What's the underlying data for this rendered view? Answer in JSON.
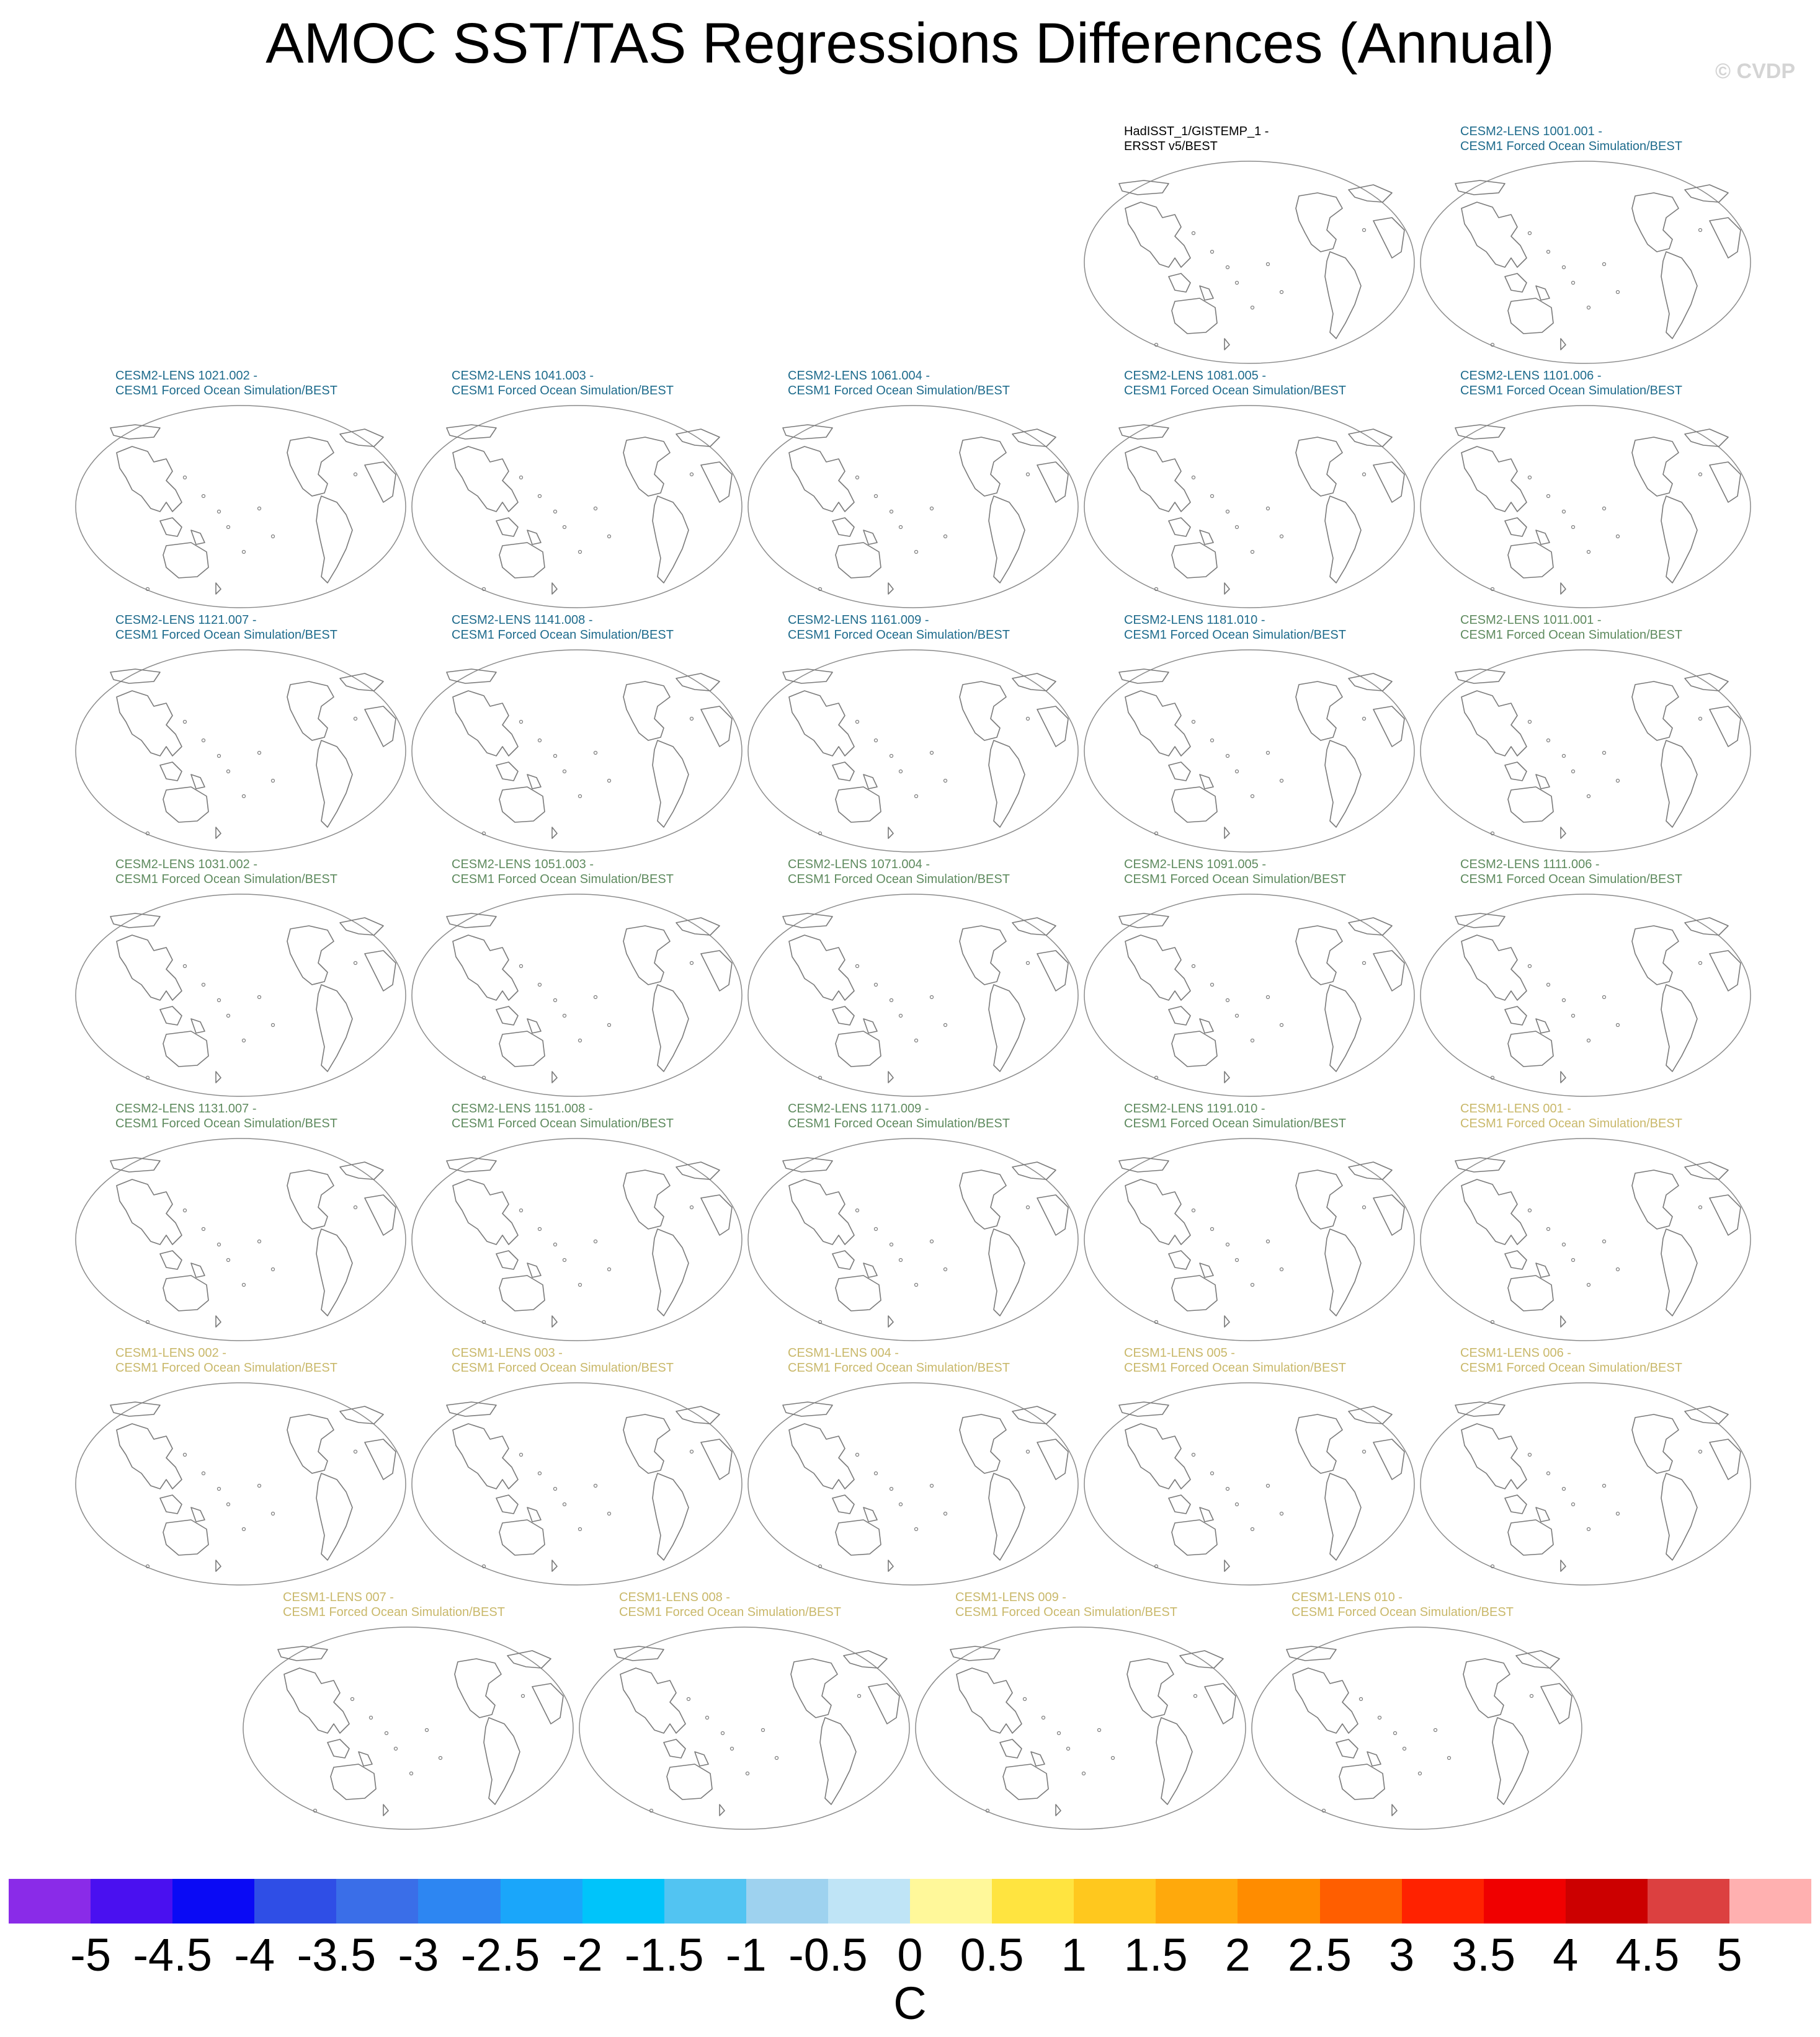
{
  "title": "AMOC SST/TAS Regressions Differences (Annual)",
  "watermark": "© CVDP",
  "colors": {
    "observation": "#000000",
    "cesm2_first": "#1e6b8c",
    "cesm2_second": "#5e8a5e",
    "cesm1": "#c9b86a",
    "coastline": "#7a7a7a",
    "map_border": "#8a8a8a"
  },
  "panels": [
    {
      "line1": "HadISST_1/GISTEMP_1 -",
      "line2": "ERSST v5/BEST",
      "group": "observation"
    },
    {
      "line1": "CESM2-LENS 1001.001 -",
      "line2": "CESM1 Forced Ocean Simulation/BEST",
      "group": "cesm2_first"
    },
    {
      "line1": "CESM2-LENS 1021.002 -",
      "line2": "CESM1 Forced Ocean Simulation/BEST",
      "group": "cesm2_first"
    },
    {
      "line1": "CESM2-LENS 1041.003 -",
      "line2": "CESM1 Forced Ocean Simulation/BEST",
      "group": "cesm2_first"
    },
    {
      "line1": "CESM2-LENS 1061.004 -",
      "line2": "CESM1 Forced Ocean Simulation/BEST",
      "group": "cesm2_first"
    },
    {
      "line1": "CESM2-LENS 1081.005 -",
      "line2": "CESM1 Forced Ocean Simulation/BEST",
      "group": "cesm2_first"
    },
    {
      "line1": "CESM2-LENS 1101.006 -",
      "line2": "CESM1 Forced Ocean Simulation/BEST",
      "group": "cesm2_first"
    },
    {
      "line1": "CESM2-LENS 1121.007 -",
      "line2": "CESM1 Forced Ocean Simulation/BEST",
      "group": "cesm2_first"
    },
    {
      "line1": "CESM2-LENS 1141.008 -",
      "line2": "CESM1 Forced Ocean Simulation/BEST",
      "group": "cesm2_first"
    },
    {
      "line1": "CESM2-LENS 1161.009 -",
      "line2": "CESM1 Forced Ocean Simulation/BEST",
      "group": "cesm2_first"
    },
    {
      "line1": "CESM2-LENS 1181.010 -",
      "line2": "CESM1 Forced Ocean Simulation/BEST",
      "group": "cesm2_first"
    },
    {
      "line1": "CESM2-LENS 1011.001 -",
      "line2": "CESM1 Forced Ocean Simulation/BEST",
      "group": "cesm2_second"
    },
    {
      "line1": "CESM2-LENS 1031.002 -",
      "line2": "CESM1 Forced Ocean Simulation/BEST",
      "group": "cesm2_second"
    },
    {
      "line1": "CESM2-LENS 1051.003 -",
      "line2": "CESM1 Forced Ocean Simulation/BEST",
      "group": "cesm2_second"
    },
    {
      "line1": "CESM2-LENS 1071.004 -",
      "line2": "CESM1 Forced Ocean Simulation/BEST",
      "group": "cesm2_second"
    },
    {
      "line1": "CESM2-LENS 1091.005 -",
      "line2": "CESM1 Forced Ocean Simulation/BEST",
      "group": "cesm2_second"
    },
    {
      "line1": "CESM2-LENS 1111.006 -",
      "line2": "CESM1 Forced Ocean Simulation/BEST",
      "group": "cesm2_second"
    },
    {
      "line1": "CESM2-LENS 1131.007 -",
      "line2": "CESM1 Forced Ocean Simulation/BEST",
      "group": "cesm2_second"
    },
    {
      "line1": "CESM2-LENS 1151.008 -",
      "line2": "CESM1 Forced Ocean Simulation/BEST",
      "group": "cesm2_second"
    },
    {
      "line1": "CESM2-LENS 1171.009 -",
      "line2": "CESM1 Forced Ocean Simulation/BEST",
      "group": "cesm2_second"
    },
    {
      "line1": "CESM2-LENS 1191.010 -",
      "line2": "CESM1 Forced Ocean Simulation/BEST",
      "group": "cesm2_second"
    },
    {
      "line1": "CESM1-LENS 001 -",
      "line2": "CESM1 Forced Ocean Simulation/BEST",
      "group": "cesm1"
    },
    {
      "line1": "CESM1-LENS 002 -",
      "line2": "CESM1 Forced Ocean Simulation/BEST",
      "group": "cesm1"
    },
    {
      "line1": "CESM1-LENS 003 -",
      "line2": "CESM1 Forced Ocean Simulation/BEST",
      "group": "cesm1"
    },
    {
      "line1": "CESM1-LENS 004 -",
      "line2": "CESM1 Forced Ocean Simulation/BEST",
      "group": "cesm1"
    },
    {
      "line1": "CESM1-LENS 005 -",
      "line2": "CESM1 Forced Ocean Simulation/BEST",
      "group": "cesm1"
    },
    {
      "line1": "CESM1-LENS 006 -",
      "line2": "CESM1 Forced Ocean Simulation/BEST",
      "group": "cesm1"
    },
    {
      "line1": "CESM1-LENS 007 -",
      "line2": "CESM1 Forced Ocean Simulation/BEST",
      "group": "cesm1"
    },
    {
      "line1": "CESM1-LENS 008 -",
      "line2": "CESM1 Forced Ocean Simulation/BEST",
      "group": "cesm1"
    },
    {
      "line1": "CESM1-LENS 009 -",
      "line2": "CESM1 Forced Ocean Simulation/BEST",
      "group": "cesm1"
    },
    {
      "line1": "CESM1-LENS 010 -",
      "line2": "CESM1 Forced Ocean Simulation/BEST",
      "group": "cesm1"
    }
  ],
  "colorbar": {
    "ticks": [
      "-5",
      "-4.5",
      "-4",
      "-3.5",
      "-3",
      "-2.5",
      "-2",
      "-1.5",
      "-1",
      "-0.5",
      "0",
      "0.5",
      "1",
      "1.5",
      "2",
      "2.5",
      "3",
      "3.5",
      "4",
      "4.5",
      "5"
    ],
    "colors": [
      "#8a2be8",
      "#4a10f0",
      "#0a0af5",
      "#2f4ee6",
      "#3a6ee8",
      "#2d86f2",
      "#1aa6fa",
      "#00c4fa",
      "#52c4f2",
      "#9ed2ef",
      "#bfe4f6",
      "#fff89a",
      "#ffe440",
      "#ffc81e",
      "#ffa90c",
      "#ff8c00",
      "#ff5e00",
      "#ff2200",
      "#f00000",
      "#cc0000",
      "#dc4040",
      "#ffb0b0"
    ],
    "unit": "C"
  }
}
